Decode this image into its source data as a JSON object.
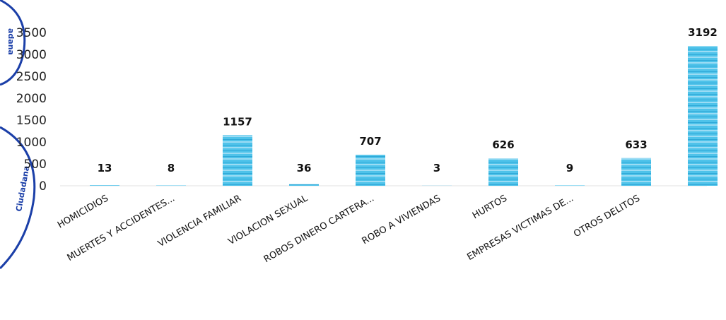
{
  "stamp": {
    "text_top": "adana",
    "text_bottom": "Ciudadana"
  },
  "chart_data": {
    "type": "bar",
    "title": "",
    "xlabel": "",
    "ylabel": "",
    "ylim": [
      0,
      3500
    ],
    "yticks": [
      "0",
      "500",
      "1000",
      "1500",
      "2000",
      "2500",
      "3000",
      "3500"
    ],
    "grid": false,
    "categories": [
      "HOMICIDIOS",
      "MUERTES Y ACCIDENTES...",
      "VIOLENCIA FAMILIAR",
      "VIOLACION SEXUAL",
      "ROBOS DINERO CARTERA...",
      "ROBO A VIVIENDAS",
      "HURTOS",
      "EMPRESAS VICTIMAS DE...",
      "OTROS DELITOS",
      ""
    ],
    "values": [
      13,
      8,
      1157,
      36,
      707,
      3,
      626,
      9,
      633,
      3192
    ],
    "labels": [
      "13",
      "8",
      "1157",
      "36",
      "707",
      "3",
      "626",
      "9",
      "633",
      "3192"
    ],
    "bar_color": "#4fc3ea"
  }
}
